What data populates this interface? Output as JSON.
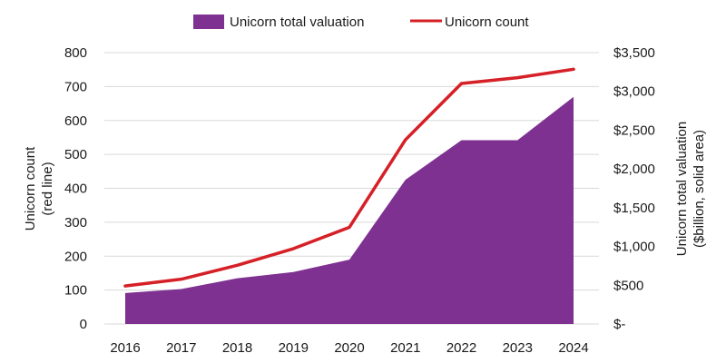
{
  "chart_data": {
    "type": "line",
    "x": [
      "2016",
      "2017",
      "2018",
      "2019",
      "2020",
      "2021",
      "2022",
      "2023",
      "2024"
    ],
    "series": [
      {
        "name": "Unicorn total valuation",
        "type": "area",
        "axis": "right",
        "color": "#7e3191",
        "values": [
          400,
          450,
          590,
          670,
          830,
          1860,
          2370,
          2370,
          2930
        ]
      },
      {
        "name": "Unicorn count",
        "type": "line",
        "axis": "left",
        "color": "#d62027",
        "values": [
          112,
          132,
          173,
          222,
          285,
          543,
          709,
          726,
          751
        ]
      }
    ],
    "left_axis": {
      "title_line1": "Unicorn count",
      "title_line2": "(red line)",
      "range": [
        0,
        800
      ],
      "ticks": [
        0,
        100,
        200,
        300,
        400,
        500,
        600,
        700,
        800
      ],
      "tick_labels": [
        "0",
        "100",
        "200",
        "300",
        "400",
        "500",
        "600",
        "700",
        "800"
      ]
    },
    "right_axis": {
      "title_line1": "Unicorn total valuation",
      "title_line2": "($billion, solid area)",
      "range": [
        0,
        3500
      ],
      "ticks": [
        0,
        500,
        1000,
        1500,
        2000,
        2500,
        3000,
        3500
      ],
      "tick_labels": [
        "$-",
        "$500",
        "$1,000",
        "$1,500",
        "$2,000",
        "$2,500",
        "$3,000",
        "$3,500"
      ]
    },
    "grid": true,
    "legend_position": "top-center"
  }
}
